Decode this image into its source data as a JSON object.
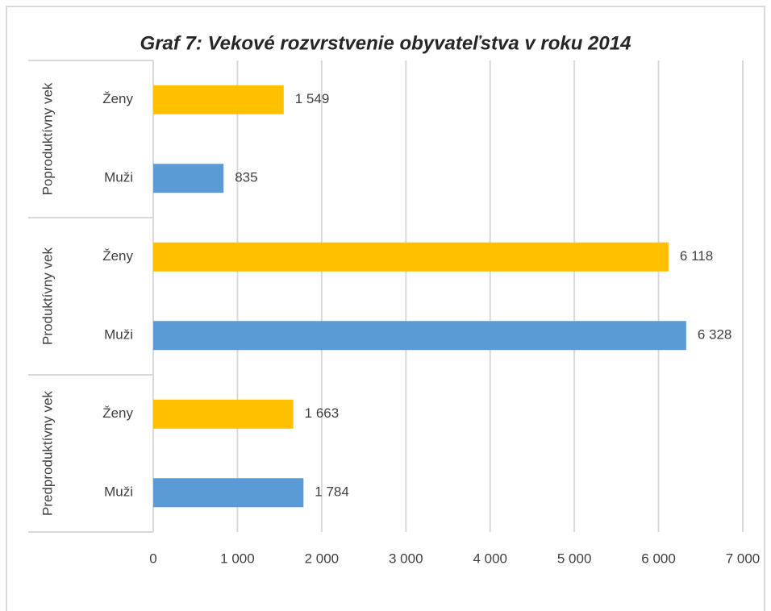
{
  "chart_data": {
    "type": "bar",
    "orientation": "horizontal",
    "title": "Graf 7: Vekové rozvrstvenie obyvateľstva v roku 2014",
    "groups": [
      {
        "name": "Predproduktívny vek",
        "categories": [
          "Muži",
          "Ženy"
        ],
        "values": [
          1784,
          1663
        ],
        "value_labels": [
          "1 784",
          "1 663"
        ]
      },
      {
        "name": "Produktívny vek",
        "categories": [
          "Muži",
          "Ženy"
        ],
        "values": [
          6328,
          6118
        ],
        "value_labels": [
          "6 328",
          "6 118"
        ]
      },
      {
        "name": "Poproduktívny vek",
        "categories": [
          "Muži",
          "Ženy"
        ],
        "values": [
          835,
          1549
        ],
        "value_labels": [
          "835",
          "1 549"
        ]
      }
    ],
    "colors": [
      "#5b9bd5",
      "#ffc000"
    ],
    "xlim": [
      0,
      7000
    ],
    "xticks": [
      0,
      {
        "value": 1000,
        "label": "1 000"
      },
      {
        "value": 2000,
        "label": "2 000"
      },
      {
        "value": 3000,
        "label": "3 000"
      },
      {
        "value": 4000,
        "label": "4 000"
      },
      {
        "value": 5000,
        "label": "5 000"
      },
      {
        "value": 6000,
        "label": "6 000"
      },
      {
        "value": 7000,
        "label": "7 000"
      }
    ],
    "grid": true
  }
}
